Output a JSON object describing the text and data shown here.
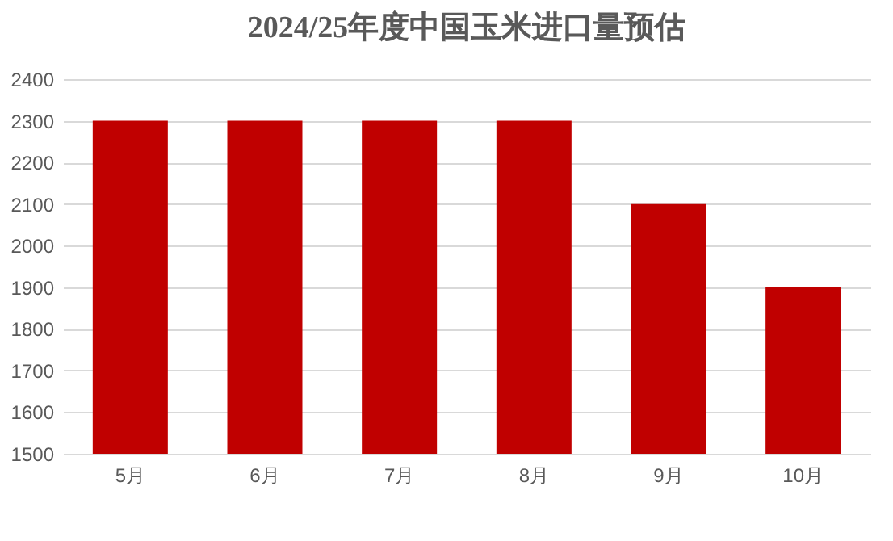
{
  "chart_data": {
    "type": "bar",
    "title": "2024/25年度中国玉米进口量预估",
    "categories": [
      "5月",
      "6月",
      "7月",
      "8月",
      "9月",
      "10月"
    ],
    "values": [
      2300,
      2300,
      2300,
      2300,
      2100,
      1900
    ],
    "color": "#c00000",
    "ylim": [
      1500,
      2400
    ],
    "yticks": [
      1500,
      1600,
      1700,
      1800,
      1900,
      2000,
      2100,
      2200,
      2300,
      2400
    ],
    "grid": "y"
  }
}
